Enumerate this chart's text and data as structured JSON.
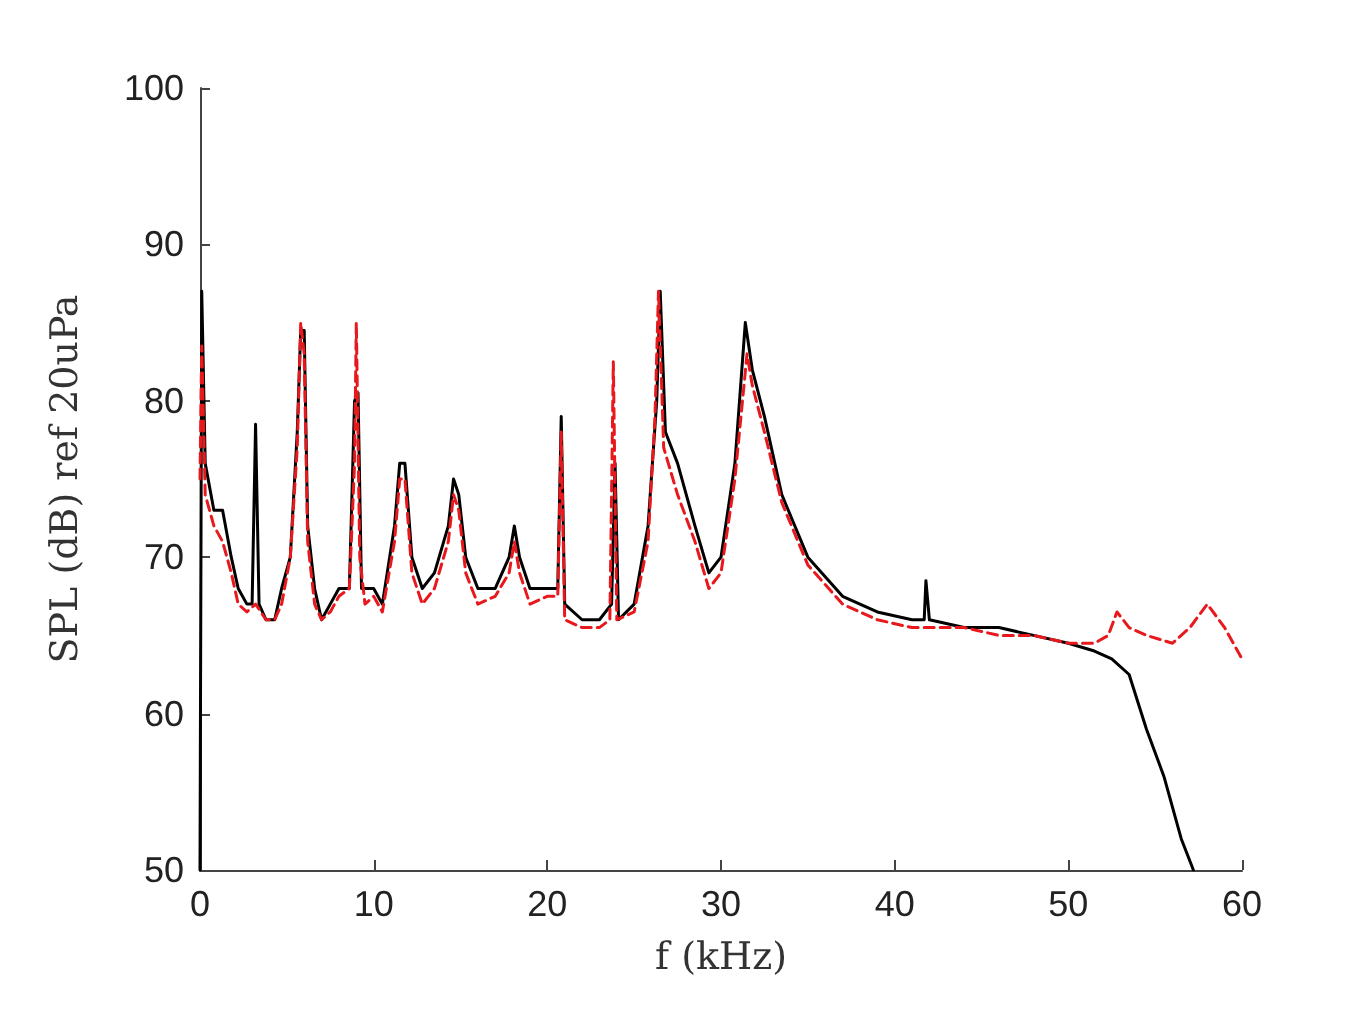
{
  "chart_data": {
    "type": "line",
    "xlabel": "f (kHz)",
    "ylabel": "SPL (dB) ref 20uPa",
    "xlim": [
      0,
      60
    ],
    "xticks": [
      0,
      10,
      20,
      30,
      40,
      50,
      60
    ],
    "ylim": [
      50,
      100
    ],
    "yticks": [
      50,
      60,
      70,
      80,
      90,
      100
    ],
    "grid": false,
    "marker": "none",
    "series": [
      {
        "color": "#000000",
        "line_style": "solid",
        "x": [
          0,
          0.1,
          0.3,
          0.8,
          1.3,
          1.8,
          2.2,
          2.7,
          3.0,
          3.2,
          3.4,
          3.8,
          4.3,
          4.7,
          5.2,
          5.6,
          5.8,
          6.0,
          6.2,
          6.6,
          7.0,
          7.5,
          8.0,
          8.6,
          8.9,
          9.1,
          9.3,
          10,
          10.5,
          11.2,
          11.5,
          11.8,
          12.2,
          12.8,
          13.5,
          14.3,
          14.6,
          14.9,
          15.3,
          16,
          17,
          17.8,
          18.1,
          18.4,
          19,
          20,
          20.6,
          20.8,
          21,
          22,
          23,
          23.7,
          23.9,
          24.1,
          25,
          25.8,
          26.3,
          26.5,
          26.8,
          27.5,
          28.5,
          29.3,
          30,
          30.8,
          31.4,
          31.8,
          32.5,
          33.5,
          35,
          37,
          39,
          41,
          41.7,
          41.8,
          42,
          44,
          46,
          48,
          50,
          51.5,
          52.5,
          53.5,
          54.5,
          55.5,
          56.5,
          57.2
        ],
        "values": [
          50,
          87,
          76,
          73,
          73,
          70,
          68,
          67,
          67,
          78.5,
          67,
          66,
          66,
          68,
          70,
          78,
          84.5,
          84.5,
          72,
          68,
          66,
          67,
          68,
          68,
          80,
          80.5,
          68,
          68,
          67,
          72,
          76,
          76,
          70,
          68,
          69,
          72,
          75,
          74,
          70,
          68,
          68,
          70,
          72,
          70,
          68,
          68,
          68,
          79,
          67,
          66,
          66,
          67,
          76,
          66,
          67,
          72,
          80,
          87,
          78,
          76,
          72,
          69,
          70,
          76,
          85,
          82,
          79,
          74,
          70,
          67.5,
          66.5,
          66,
          66,
          68.5,
          66,
          65.5,
          65.5,
          65,
          64.5,
          64,
          63.5,
          62.5,
          59,
          56,
          52,
          50
        ]
      },
      {
        "color": "#e8191d",
        "line_style": "dashed",
        "x": [
          0,
          0.1,
          0.3,
          0.8,
          1.3,
          1.8,
          2.2,
          2.7,
          3.2,
          3.8,
          4.3,
          4.7,
          5.2,
          5.6,
          5.8,
          6.0,
          6.2,
          6.6,
          7.0,
          7.5,
          8.0,
          8.6,
          8.9,
          9.0,
          9.2,
          9.5,
          10,
          10.5,
          11.2,
          11.5,
          11.8,
          12.2,
          12.8,
          13.5,
          14.3,
          14.6,
          14.9,
          15.3,
          16,
          17,
          17.8,
          18.1,
          18.4,
          19,
          20,
          20.6,
          20.8,
          21,
          22,
          23,
          23.6,
          23.8,
          24.0,
          25,
          25.8,
          26.2,
          26.4,
          26.7,
          27.5,
          28.5,
          29.3,
          30,
          30.8,
          31.5,
          31.8,
          32.5,
          33.5,
          35,
          37,
          39,
          41,
          44,
          46,
          48,
          50,
          51.5,
          52.3,
          52.8,
          53.5,
          54.5,
          56,
          57,
          58,
          59,
          60
        ],
        "values": [
          75,
          83.5,
          74,
          72,
          71,
          69,
          67,
          66.5,
          67,
          66,
          66,
          67,
          70,
          77,
          85,
          83,
          71,
          67,
          66,
          66.5,
          67.5,
          68,
          76,
          85,
          70,
          67,
          67.5,
          66.5,
          71,
          75,
          75,
          69,
          67,
          68,
          71,
          74,
          73,
          69,
          67,
          67.5,
          69,
          71,
          69,
          67,
          67.5,
          67.5,
          78,
          66,
          65.5,
          65.5,
          66,
          82.5,
          66,
          66.5,
          71,
          79,
          87,
          77,
          74,
          71,
          68,
          69,
          75,
          83,
          81,
          78,
          73.5,
          69.5,
          67,
          66,
          65.5,
          65.5,
          65,
          65,
          64.5,
          64.5,
          65,
          66.5,
          65.5,
          65,
          64.5,
          65.5,
          67,
          65.5,
          63.5
        ]
      }
    ]
  }
}
